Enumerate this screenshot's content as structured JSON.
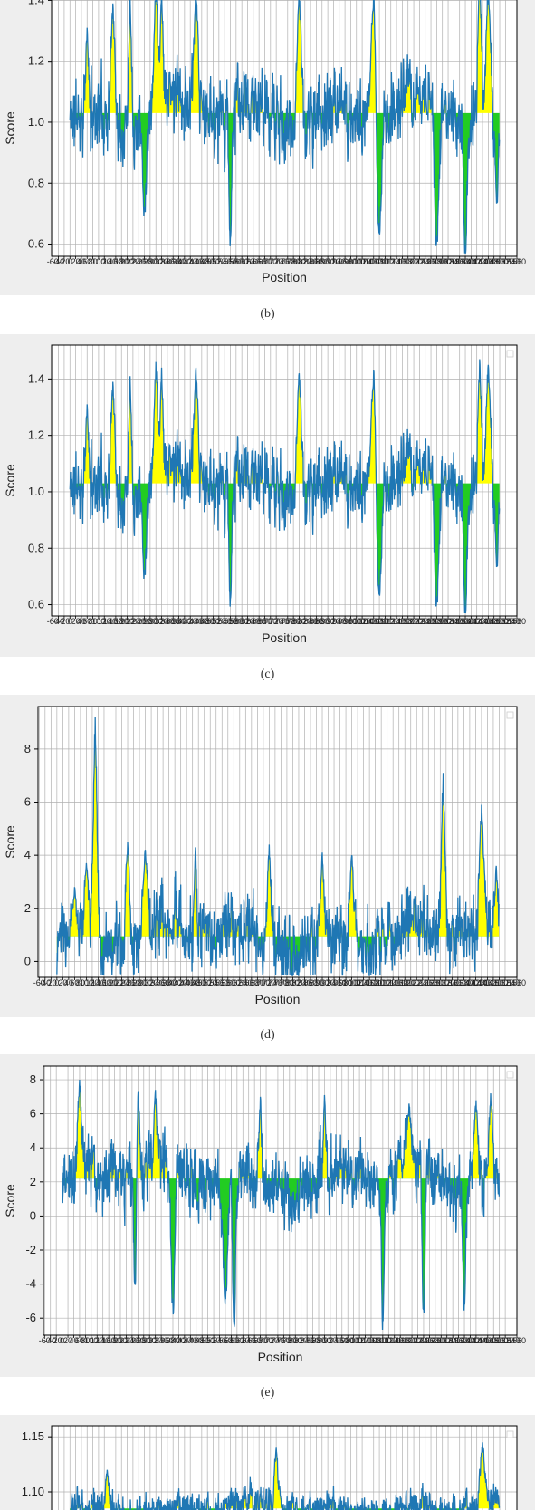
{
  "colors": {
    "line": "#1f77b4",
    "above_fill": "#ffff00",
    "below_fill": "#22cc22",
    "panel_bg": "#eeeeee",
    "grid": "#b0b0b0"
  },
  "chart_data": [
    {
      "type": "line",
      "panel_label": "(b)",
      "xlabel": "Position",
      "ylabel": "Score",
      "xlim": [
        -64,
        1560
      ],
      "ylim": [
        0.56,
        1.52
      ],
      "yticks": [
        0.6,
        0.8,
        1.0,
        1.2,
        1.4
      ],
      "ytick_labels": [
        "0.6",
        "0.8",
        "1.0",
        "1.2",
        "1.4"
      ],
      "baseline": 1.03,
      "n_points": 1500,
      "seed": 11,
      "peaks": [
        [
          60,
          1.31
        ],
        [
          150,
          1.39
        ],
        [
          210,
          1.41
        ],
        [
          300,
          1.46
        ],
        [
          320,
          1.44
        ],
        [
          440,
          1.44
        ],
        [
          800,
          1.42
        ],
        [
          1060,
          1.43
        ],
        [
          1430,
          1.49
        ],
        [
          1460,
          1.45
        ]
      ],
      "troughs": [
        [
          260,
          0.72
        ],
        [
          560,
          0.62
        ],
        [
          1080,
          0.67
        ],
        [
          1280,
          0.62
        ],
        [
          1380,
          0.59
        ],
        [
          1490,
          0.74
        ]
      ],
      "grid": true,
      "legend": false
    },
    {
      "type": "line",
      "panel_label": "(c)",
      "xlabel": "Position",
      "ylabel": "Score",
      "xlim": [
        -64,
        1560
      ],
      "ylim": [
        0.56,
        1.52
      ],
      "yticks": [
        0.6,
        0.8,
        1.0,
        1.2,
        1.4
      ],
      "ytick_labels": [
        "0.6",
        "0.8",
        "1.0",
        "1.2",
        "1.4"
      ],
      "baseline": 1.03,
      "n_points": 1500,
      "seed": 11,
      "peaks": [
        [
          60,
          1.31
        ],
        [
          150,
          1.39
        ],
        [
          210,
          1.41
        ],
        [
          300,
          1.46
        ],
        [
          320,
          1.44
        ],
        [
          440,
          1.44
        ],
        [
          800,
          1.42
        ],
        [
          1060,
          1.43
        ],
        [
          1430,
          1.47
        ],
        [
          1460,
          1.45
        ]
      ],
      "troughs": [
        [
          260,
          0.72
        ],
        [
          560,
          0.62
        ],
        [
          1080,
          0.67
        ],
        [
          1280,
          0.62
        ],
        [
          1380,
          0.59
        ],
        [
          1490,
          0.74
        ]
      ],
      "grid": true,
      "legend": "top-right"
    },
    {
      "type": "line",
      "panel_label": "(d)",
      "xlabel": "Position",
      "ylabel": "Score",
      "xlim": [
        -64,
        1560
      ],
      "ylim": [
        -0.6,
        9.6
      ],
      "yticks": [
        0,
        2,
        4,
        6,
        8
      ],
      "ytick_labels": [
        "0",
        "2",
        "4",
        "6",
        "8"
      ],
      "baseline": 0.95,
      "n_points": 1500,
      "seed": 23,
      "peaks": [
        [
          60,
          2.8
        ],
        [
          100,
          3.7
        ],
        [
          130,
          9.2
        ],
        [
          240,
          4.5
        ],
        [
          300,
          4.2
        ],
        [
          470,
          4.3
        ],
        [
          720,
          4.4
        ],
        [
          900,
          4.1
        ],
        [
          1000,
          4.0
        ],
        [
          1310,
          7.1
        ],
        [
          1440,
          5.9
        ],
        [
          1490,
          3.6
        ]
      ],
      "troughs": [],
      "grid": true,
      "legend": "top-right"
    },
    {
      "type": "line",
      "panel_label": "(e)",
      "xlabel": "Position",
      "ylabel": "Score",
      "xlim": [
        -64,
        1560
      ],
      "ylim": [
        -7.0,
        8.8
      ],
      "yticks": [
        -6,
        -4,
        -2,
        0,
        2,
        4,
        6,
        8
      ],
      "ytick_labels": [
        "-6",
        "-4",
        "-2",
        "0",
        "2",
        "4",
        "6",
        "8"
      ],
      "baseline": 2.2,
      "n_points": 1500,
      "seed": 37,
      "peaks": [
        [
          60,
          8.0
        ],
        [
          260,
          7.6
        ],
        [
          320,
          7.4
        ],
        [
          680,
          7.0
        ],
        [
          900,
          7.1
        ],
        [
          1190,
          6.6
        ],
        [
          1420,
          6.8
        ],
        [
          1470,
          7.2
        ]
      ],
      "troughs": [
        [
          250,
          -4.0
        ],
        [
          380,
          -5.1
        ],
        [
          560,
          -4.4
        ],
        [
          590,
          -6.4
        ],
        [
          1100,
          -5.8
        ],
        [
          1240,
          -5.4
        ],
        [
          1380,
          -5.1
        ],
        [
          1510,
          -3.4
        ]
      ],
      "grid": true,
      "legend": "top-right"
    },
    {
      "type": "line",
      "panel_label": "",
      "xlabel": "",
      "ylabel": "",
      "xlim": [
        -64,
        1560
      ],
      "ylim": [
        1.04,
        1.16
      ],
      "yticks": [
        1.1,
        1.15
      ],
      "ytick_labels": [
        "1.10",
        "1.15"
      ],
      "baseline": 1.085,
      "n_points": 1500,
      "seed": 53,
      "peaks": [
        [
          130,
          1.12
        ],
        [
          720,
          1.14
        ],
        [
          1440,
          1.145
        ]
      ],
      "troughs": [],
      "grid": true,
      "legend": "top-right"
    }
  ]
}
